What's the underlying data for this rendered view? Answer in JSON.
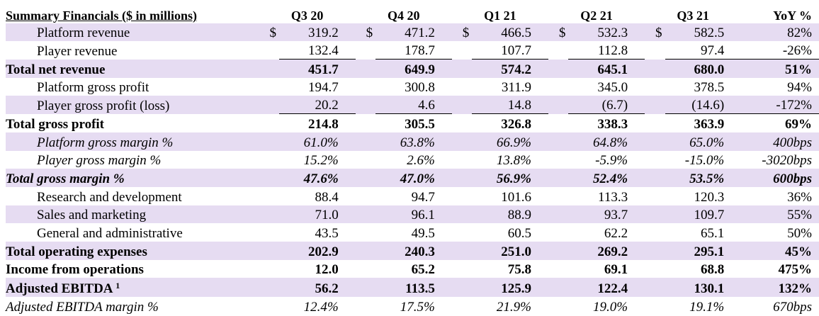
{
  "header": {
    "title": "Summary Financials ($ in millions)",
    "periods": [
      "Q3 20",
      "Q4 20",
      "Q1 21",
      "Q2 21",
      "Q3 21"
    ],
    "yoy": "YoY %"
  },
  "currency_symbol": "$",
  "rows": [
    {
      "label": "Platform revenue",
      "values": [
        "319.2",
        "471.2",
        "466.5",
        "532.3",
        "582.5"
      ],
      "yoy": "82%"
    },
    {
      "label": "Player revenue",
      "values": [
        "132.4",
        "178.7",
        "107.7",
        "112.8",
        "97.4"
      ],
      "yoy": "-26%"
    },
    {
      "label": "Total net revenue",
      "values": [
        "451.7",
        "649.9",
        "574.2",
        "645.1",
        "680.0"
      ],
      "yoy": "51%"
    },
    {
      "label": "Platform gross profit",
      "values": [
        "194.7",
        "300.8",
        "311.9",
        "345.0",
        "378.5"
      ],
      "yoy": "94%"
    },
    {
      "label": "Player gross profit (loss)",
      "values": [
        "20.2",
        "4.6",
        "14.8",
        "(6.7)",
        "(14.6)"
      ],
      "yoy": "-172%"
    },
    {
      "label": "Total gross profit",
      "values": [
        "214.8",
        "305.5",
        "326.8",
        "338.3",
        "363.9"
      ],
      "yoy": "69%"
    },
    {
      "label": "Platform gross margin %",
      "values": [
        "61.0%",
        "63.8%",
        "66.9%",
        "64.8%",
        "65.0%"
      ],
      "yoy": "400bps"
    },
    {
      "label": "Player gross margin %",
      "values": [
        "15.2%",
        "2.6%",
        "13.8%",
        "-5.9%",
        "-15.0%"
      ],
      "yoy": "-3020bps"
    },
    {
      "label": "Total gross margin %",
      "values": [
        "47.6%",
        "47.0%",
        "56.9%",
        "52.4%",
        "53.5%"
      ],
      "yoy": "600bps"
    },
    {
      "label": "Research and development",
      "values": [
        "88.4",
        "94.7",
        "101.6",
        "113.3",
        "120.3"
      ],
      "yoy": "36%"
    },
    {
      "label": "Sales and marketing",
      "values": [
        "71.0",
        "96.1",
        "88.9",
        "93.7",
        "109.7"
      ],
      "yoy": "55%"
    },
    {
      "label": "General and administrative",
      "values": [
        "43.5",
        "49.5",
        "60.5",
        "62.2",
        "65.1"
      ],
      "yoy": "50%"
    },
    {
      "label": "Total operating expenses",
      "values": [
        "202.9",
        "240.3",
        "251.0",
        "269.2",
        "295.1"
      ],
      "yoy": "45%"
    },
    {
      "label": "Income from operations",
      "values": [
        "12.0",
        "65.2",
        "75.8",
        "69.1",
        "68.8"
      ],
      "yoy": "475%"
    },
    {
      "label": "Adjusted EBITDA",
      "footnote": "1",
      "values": [
        "56.2",
        "113.5",
        "125.9",
        "122.4",
        "130.1"
      ],
      "yoy": "132%"
    },
    {
      "label": "Adjusted EBITDA margin %",
      "values": [
        "12.4%",
        "17.5%",
        "21.9%",
        "19.0%",
        "19.1%"
      ],
      "yoy": "670bps"
    }
  ],
  "colors": {
    "row_shading": "#e6dcf2",
    "text": "#000000"
  }
}
